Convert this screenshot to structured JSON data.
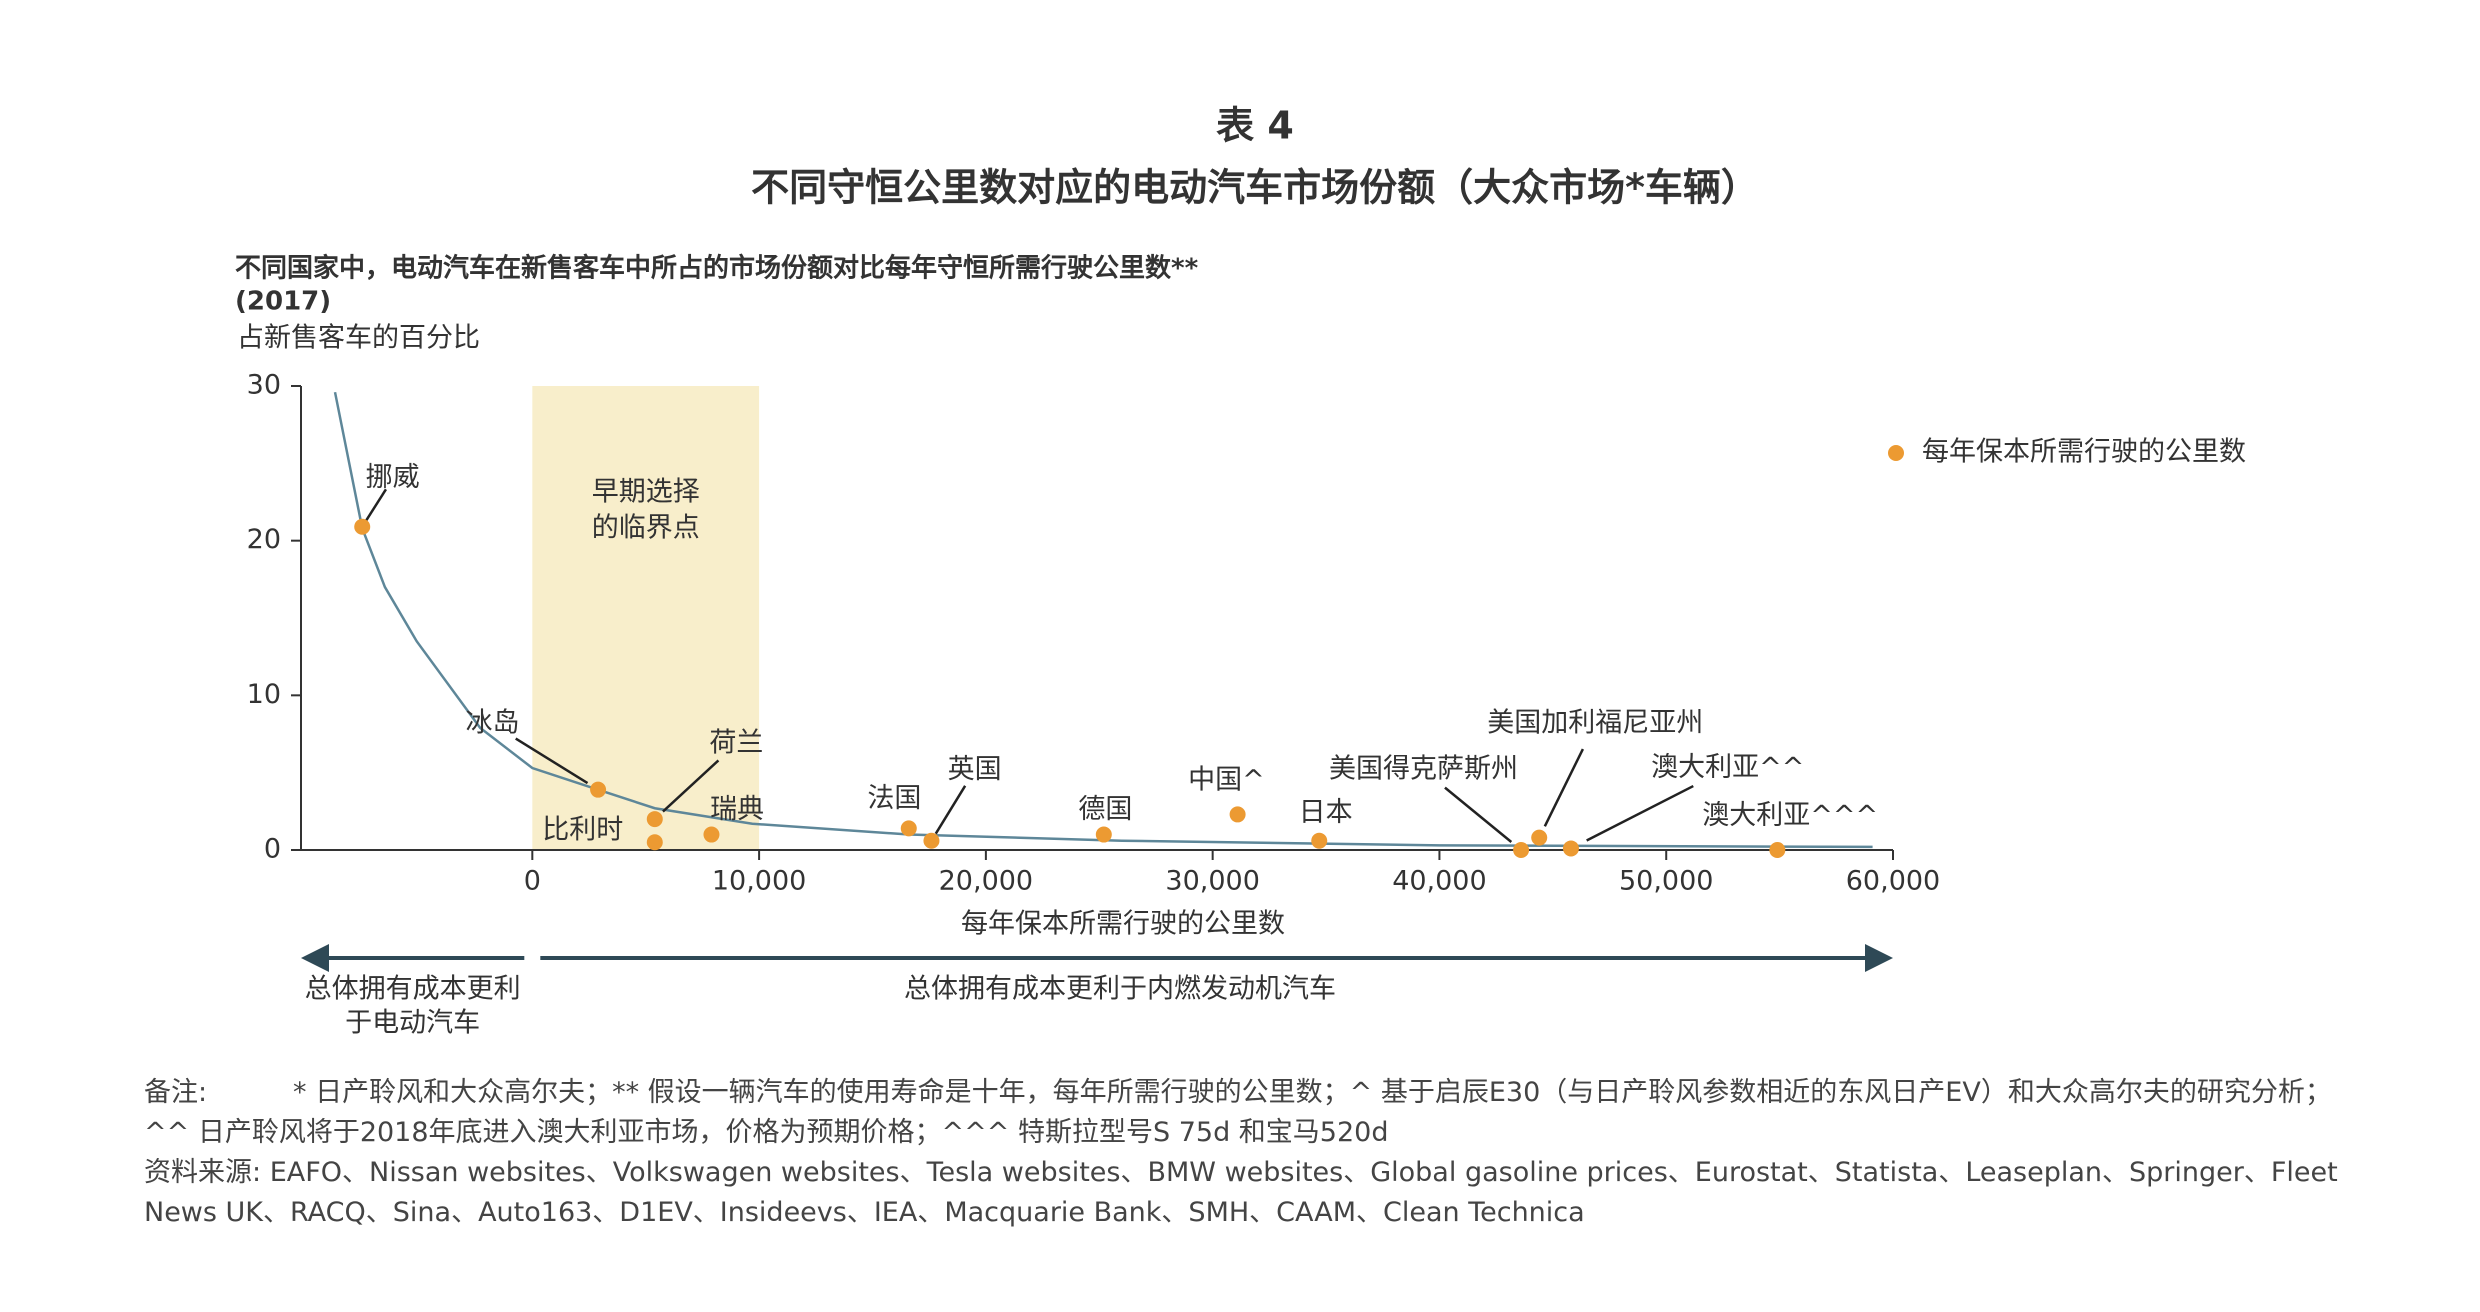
{
  "chart_data": {
    "type": "scatter",
    "title": "表 4",
    "subtitle": "不同守恒公里数对应的电动汽车市场份额（大众市场*车辆）",
    "chart_title": [
      "不同国家中，电动汽车在新售客车中所占的市场份额对比每年守恒所需行驶公里数**",
      "(2017)"
    ],
    "y_label": "占新售客车的百分比",
    "x_label": "每年保本所需行驶的公里数",
    "xlim": [
      -10200,
      60000
    ],
    "xticks": [
      0,
      {
        "value": 10000,
        "label": "10,000"
      },
      {
        "value": 20000,
        "label": "20,000"
      },
      {
        "value": 30000,
        "label": "30,000"
      },
      {
        "value": 40000,
        "label": "40,000"
      },
      {
        "value": 50000,
        "label": "50,000"
      },
      {
        "value": 60000,
        "label": "60,000"
      }
    ],
    "ylim": [
      0,
      30
    ],
    "yticks": [
      0,
      10,
      20,
      30
    ],
    "legend_position": "upper right",
    "series": [
      {
        "name": "每年保本所需行驶的公里数",
        "color": "#ec9a32",
        "labels": [
          "挪威",
          "冰岛",
          "荷兰",
          "比利时",
          "瑞典",
          "法国",
          "英国",
          "德国",
          "中国^",
          "日本",
          "美国得克萨斯州",
          "美国加利福尼亚州",
          "澳大利亚^^",
          "澳大利亚^^^"
        ],
        "x": [
          -7500,
          2900,
          5400,
          5400,
          7900,
          16600,
          17600,
          25200,
          31100,
          34700,
          43600,
          44400,
          45800,
          54900
        ],
        "values": [
          20.9,
          3.9,
          2.0,
          0.5,
          1.0,
          1.4,
          0.6,
          1.0,
          2.3,
          0.6,
          0,
          0.8,
          0.1,
          0
        ]
      }
    ],
    "curve": {
      "color": "#5e8799",
      "x": [
        -8700,
        -7500,
        -6500,
        -5100,
        -2300,
        0,
        2900,
        5400,
        9700,
        16600,
        26000,
        40000,
        59100
      ],
      "values": [
        29.6,
        20.8,
        17,
        13.5,
        7.9,
        5.3,
        3.9,
        2.7,
        1.7,
        1.0,
        0.6,
        0.3,
        0.2
      ]
    },
    "highlight": {
      "x": [
        0,
        10000
      ],
      "color": "#f8eecb",
      "label": [
        "早期选择",
        "的临界点"
      ]
    },
    "arrows": {
      "color": "#2e4956",
      "left": [
        "总体拥有成本更利",
        "于电动汽车"
      ],
      "right": "总体拥有成本更利于内燃发动机汽车"
    },
    "notes": {
      "label": "备注:",
      "text": "* 日产聆风和大众高尔夫；** 假设一辆汽车的使用寿命是十年，每年所需行驶的公里数；^ 基于启辰E30（与日产聆风参数相近的东风日产EV）和大众高尔夫的研究分析；^^ 日产聆风将于2018年底进入澳大利亚市场，价格为预期价格；^^^ 特斯拉型号S 75d 和宝马520d"
    },
    "source": {
      "label": "资料来源:",
      "text": "EAFO、Nissan websites、Volkswagen websites、Tesla websites、BMW websites、Global gasoline prices、Eurostat、Statista、Leaseplan、Springer、Fleet News UK、RACQ、Sina、Auto163、D1EV、Insideevs、IEA、Macquarie Bank、SMH、CAAM、Clean Technica"
    }
  }
}
